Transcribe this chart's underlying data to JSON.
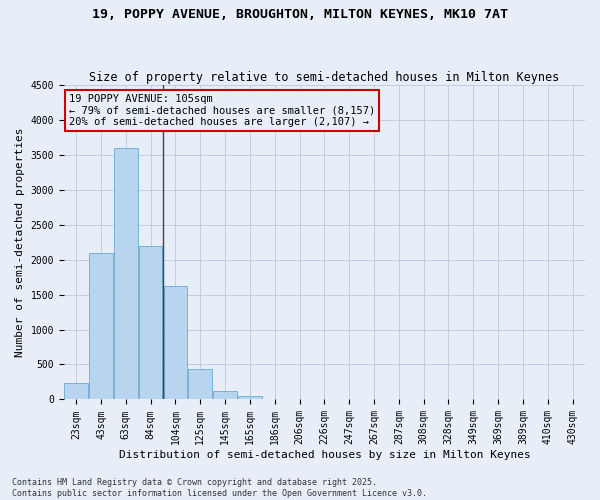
{
  "title_line1": "19, POPPY AVENUE, BROUGHTON, MILTON KEYNES, MK10 7AT",
  "title_line2": "Size of property relative to semi-detached houses in Milton Keynes",
  "xlabel": "Distribution of semi-detached houses by size in Milton Keynes",
  "ylabel": "Number of semi-detached properties",
  "categories": [
    "23sqm",
    "43sqm",
    "63sqm",
    "84sqm",
    "104sqm",
    "125sqm",
    "145sqm",
    "165sqm",
    "186sqm",
    "206sqm",
    "226sqm",
    "247sqm",
    "267sqm",
    "287sqm",
    "308sqm",
    "328sqm",
    "349sqm",
    "369sqm",
    "389sqm",
    "410sqm",
    "430sqm"
  ],
  "values": [
    230,
    2100,
    3600,
    2200,
    1620,
    440,
    120,
    50,
    0,
    0,
    0,
    0,
    0,
    0,
    0,
    0,
    0,
    0,
    0,
    0,
    0
  ],
  "bar_color": "#b8d4ee",
  "bar_edge_color": "#6aaad4",
  "background_color": "#e8eef8",
  "grid_color": "#c0cce0",
  "annotation_line1": "19 POPPY AVENUE: 105sqm",
  "annotation_line2": "← 79% of semi-detached houses are smaller (8,157)",
  "annotation_line3": "20% of semi-detached houses are larger (2,107) →",
  "annotation_box_color": "#cc0000",
  "vline_position": 3.5,
  "ylim": [
    0,
    4500
  ],
  "yticks": [
    0,
    500,
    1000,
    1500,
    2000,
    2500,
    3000,
    3500,
    4000,
    4500
  ],
  "footnote": "Contains HM Land Registry data © Crown copyright and database right 2025.\nContains public sector information licensed under the Open Government Licence v3.0.",
  "title_fontsize": 9.5,
  "subtitle_fontsize": 8.5,
  "tick_fontsize": 7,
  "ylabel_fontsize": 8,
  "xlabel_fontsize": 8,
  "annotation_fontsize": 7.5,
  "footnote_fontsize": 6
}
